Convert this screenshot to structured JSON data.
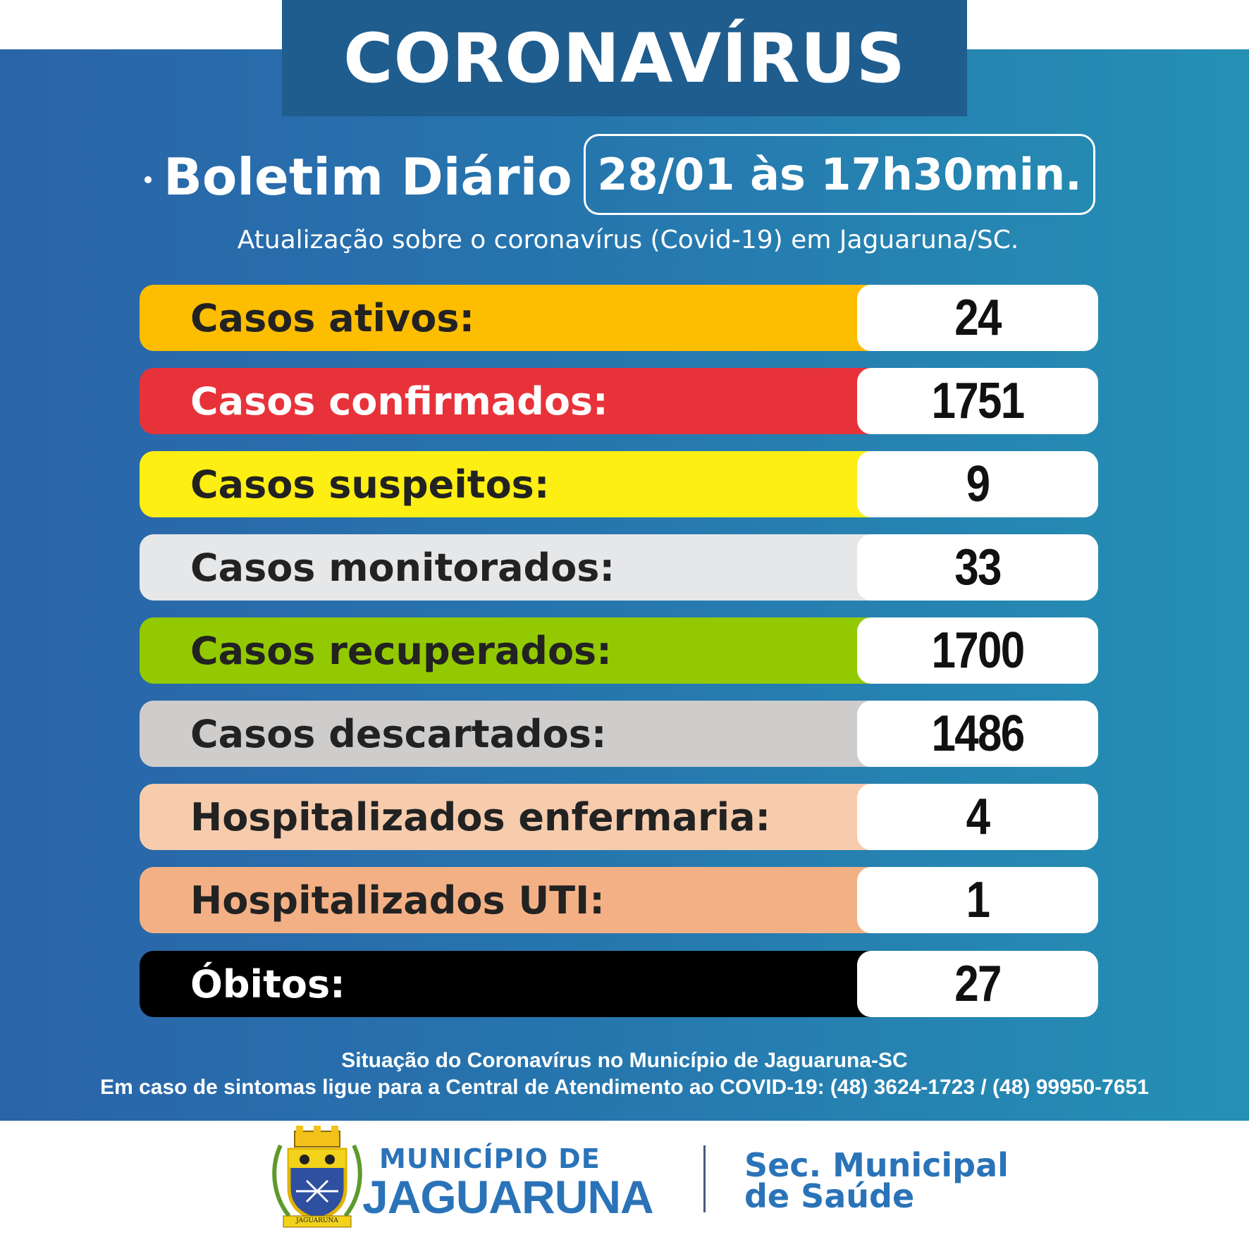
{
  "header": {
    "title": "CORONAVÍRUS",
    "boletim": "Boletim Diário",
    "date": "28/01 às 17h30min.",
    "subtitle": "Atualização sobre o coronavírus (Covid-19) em Jaguaruna/SC."
  },
  "stats": [
    {
      "label": "Casos ativos:",
      "value": "24",
      "color": "#fdbd00",
      "text_color": "#222222"
    },
    {
      "label": "Casos confirmados:",
      "value": "1751",
      "color": "#e8323a",
      "text_color": "#ffffff"
    },
    {
      "label": "Casos suspeitos:",
      "value": "9",
      "color": "#fdee14",
      "text_color": "#222222"
    },
    {
      "label": "Casos monitorados:",
      "value": "33",
      "color": "#e6e7e9",
      "text_color": "#222222"
    },
    {
      "label": "Casos recuperados:",
      "value": "1700",
      "color": "#93c900",
      "text_color": "#222222"
    },
    {
      "label": "Casos descartados:",
      "value": "1486",
      "color": "#cfcccc",
      "text_color": "#222222"
    },
    {
      "label": "Hospitalizados enfermaria:",
      "value": "4",
      "color": "#f6ccad",
      "text_color": "#222222"
    },
    {
      "label": "Hospitalizados UTI:",
      "value": "1",
      "color": "#f3b085",
      "text_color": "#222222"
    },
    {
      "label": "Óbitos:",
      "value": "27",
      "color": "#000000",
      "text_color": "#ffffff"
    }
  ],
  "footer": {
    "line1": "Situação do Coronavírus no Município de Jaguaruna-SC",
    "line2": "Em caso de sintomas ligue para a Central de Atendimento ao COVID-19: (48) 3624-1723 / (48) 99950-7651"
  },
  "logo": {
    "municipio": "MUNICÍPIO DE",
    "name": "JAGUARUNA",
    "crest_text": "JAGUARUNA",
    "secretaria_line1": "Sec. Municipal",
    "secretaria_line2": "de Saúde",
    "brand_color": "#2a73b8"
  }
}
